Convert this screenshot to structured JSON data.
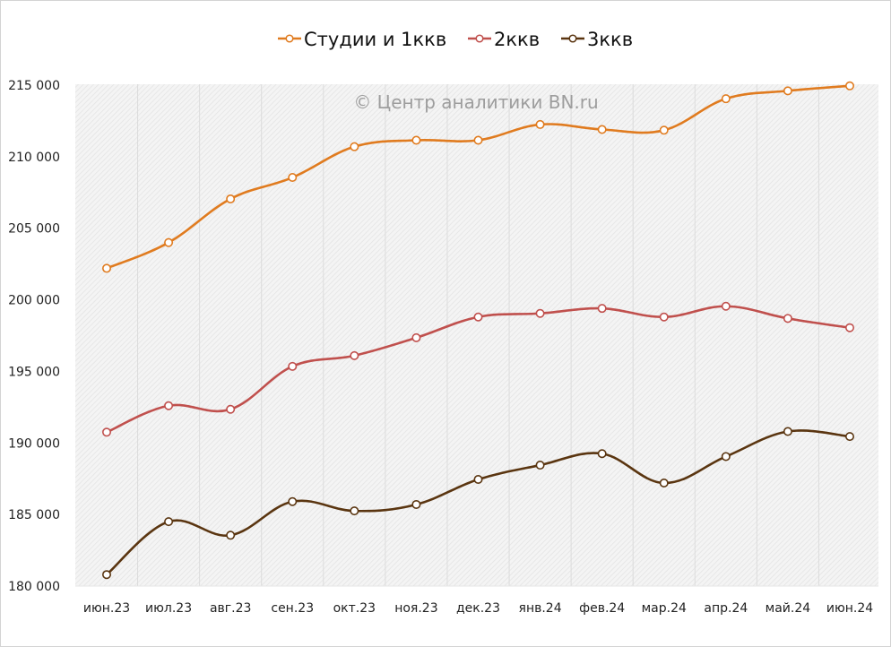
{
  "chart_data": {
    "type": "line",
    "title": "",
    "watermark": "© Центр аналитики BN.ru",
    "xlabel": "",
    "ylabel": "",
    "categories": [
      "июн.23",
      "июл.23",
      "авг.23",
      "сен.23",
      "окт.23",
      "ноя.23",
      "дек.23",
      "янв.24",
      "фев.24",
      "мар.24",
      "апр.24",
      "май.24",
      "июн.24"
    ],
    "ylim": [
      180000,
      215000
    ],
    "yticks": [
      180000,
      185000,
      190000,
      195000,
      200000,
      205000,
      210000,
      215000
    ],
    "ytick_labels": [
      "180 000",
      "185 000",
      "190 000",
      "195 000",
      "200 000",
      "205 000",
      "210 000",
      "215 000"
    ],
    "grid": "vertical",
    "legend_position": "top",
    "smooth": true,
    "series": [
      {
        "name": "Студии и 1ккв",
        "color": "#e07b1f",
        "values": [
          202200,
          204000,
          207050,
          208550,
          210700,
          211150,
          211150,
          212250,
          211900,
          211850,
          214050,
          214600,
          214950
        ]
      },
      {
        "name": "2ккв",
        "color": "#c0504d",
        "values": [
          190750,
          192600,
          192350,
          195350,
          196100,
          197350,
          198800,
          199050,
          199400,
          198800,
          199550,
          198700,
          198050
        ]
      },
      {
        "name": "3ккв",
        "color": "#5a3510",
        "values": [
          180800,
          184500,
          183550,
          185900,
          185250,
          185700,
          187450,
          188450,
          189250,
          187200,
          189050,
          190800,
          190450
        ]
      }
    ]
  }
}
